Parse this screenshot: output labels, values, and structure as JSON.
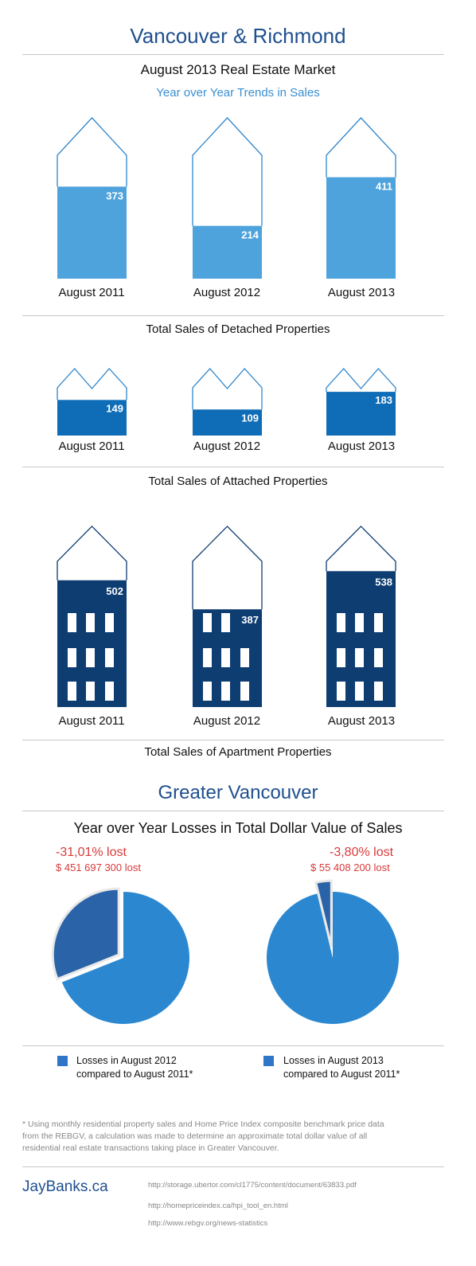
{
  "header": {
    "title": "Vancouver & Richmond",
    "subtitle": "August 2013 Real Estate Market",
    "section_subtitle": "Year over Year Trends in Sales"
  },
  "colors": {
    "detached": "#4ea3dd",
    "attached": "#0f6cb6",
    "apartment": "#0e3d72",
    "outline_light": "#2f86cc",
    "outline_dark": "#0e3d72",
    "title_blue": "#1e4f8e",
    "loss_red": "#d83a3a",
    "pie_main": "#2b88d0",
    "pie_loss": "#2a63a8"
  },
  "chart_data": [
    {
      "type": "bar",
      "title": "Total Sales of Detached Properties",
      "categories": [
        "August 2011",
        "August 2012",
        "August 2013"
      ],
      "values": [
        373,
        214,
        411
      ],
      "ylim": [
        0,
        500
      ]
    },
    {
      "type": "bar",
      "title": "Total Sales of Attached Properties",
      "categories": [
        "August 2011",
        "August 2012",
        "August 2013"
      ],
      "values": [
        149,
        109,
        183
      ],
      "ylim": [
        0,
        200
      ]
    },
    {
      "type": "bar",
      "title": "Total Sales of Apartment Properties",
      "categories": [
        "August 2011",
        "August 2012",
        "August 2013"
      ],
      "values": [
        502,
        387,
        538
      ],
      "ylim": [
        0,
        600
      ]
    },
    {
      "type": "pie",
      "title": "Year over Year Losses in Total Dollar Value of Sales",
      "pies": [
        {
          "label": "Losses in August 2012 compared to August 2011*",
          "loss_percent": 31.01,
          "loss_percent_text": "-31,01% lost",
          "loss_amount_text": "$ 451 697 300 lost"
        },
        {
          "label": "Losses in August 2013 compared to August 2011*",
          "loss_percent": 3.8,
          "loss_percent_text": "-3,80% lost",
          "loss_amount_text": "$ 55 408 200 lost"
        }
      ]
    }
  ],
  "sections": {
    "detached_label": "Total Sales of Detached Properties",
    "attached_label": "Total Sales of Attached Properties",
    "apartment_label": "Total Sales of Apartment Properties"
  },
  "greater_vancouver": {
    "title": "Greater Vancouver",
    "subtitle": "Year over Year Losses in Total Dollar Value of Sales"
  },
  "legend": {
    "item1_line1": "Losses in August 2012",
    "item1_line2": "compared to August 2011*",
    "item2_line1": "Losses in August 2013",
    "item2_line2": "compared to August 2011*"
  },
  "footer": {
    "footnote": "* Using monthly residential property sales and Home Price Index composite benchmark price data from the REBGV, a calculation was made to determine an approximate total dollar value of all residential real estate transactions taking place in Greater Vancouver.",
    "brand": "JayBanks.ca",
    "sources": [
      "http://storage.ubertor.com/cl1775/content/document/63833.pdf",
      "http://homepriceindex.ca/hpi_tool_en.html",
      "http://www.rebgv.org/news-statistics"
    ]
  }
}
